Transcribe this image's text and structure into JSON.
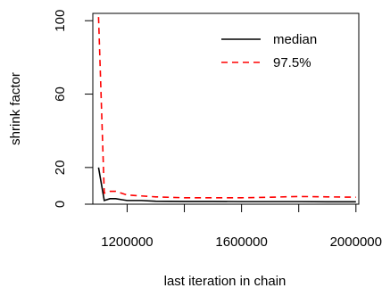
{
  "chart_data": {
    "type": "line",
    "title": "",
    "xlabel": "last iteration in chain",
    "ylabel": "shrink factor",
    "xlim": [
      1080000,
      2010000
    ],
    "ylim": [
      0,
      104
    ],
    "xticks": [
      1200000,
      1600000,
      2000000
    ],
    "xtick_labels": [
      "1200000",
      "1600000",
      "2000000"
    ],
    "xticks_minor": [
      1400000,
      1800000
    ],
    "yticks": [
      0,
      20,
      60,
      100
    ],
    "ytick_labels": [
      "0",
      "20",
      "60",
      "100"
    ],
    "grid": false,
    "legend_position": "top-right",
    "series": [
      {
        "name": "median",
        "color": "#000000",
        "dash": "solid",
        "x": [
          1100000,
          1120000,
          1140000,
          1160000,
          1180000,
          1200000,
          1250000,
          1300000,
          1400000,
          1500000,
          1600000,
          1700000,
          1800000,
          1900000,
          2000000
        ],
        "y": [
          20,
          2,
          3,
          3,
          2.5,
          2,
          2,
          1.6,
          1.5,
          1.5,
          1.4,
          1.4,
          1.4,
          1.3,
          1.3
        ]
      },
      {
        "name": "97.5%",
        "color": "#ff0000",
        "dash": "dashed",
        "x": [
          1100000,
          1120000,
          1140000,
          1160000,
          1180000,
          1200000,
          1250000,
          1300000,
          1400000,
          1500000,
          1600000,
          1700000,
          1800000,
          1900000,
          2000000
        ],
        "y": [
          102,
          6,
          7,
          7,
          6,
          5,
          4.5,
          4,
          3.5,
          3.5,
          3.5,
          3.8,
          4.2,
          4,
          3.8
        ]
      }
    ]
  }
}
